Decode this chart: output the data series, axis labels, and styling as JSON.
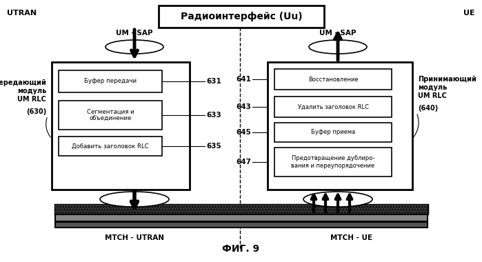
{
  "title": "ФИГ. 9",
  "radio_interface_label": "Радиоинтерфейс (Uu)",
  "utran_label": "UTRAN",
  "ue_label": "UE",
  "um_sap_left": "UM - SAP",
  "um_sap_right": "UM - SAP",
  "tx_module_line1": "Передающий",
  "tx_module_line2": "модуль",
  "tx_module_line3": "UM RLC",
  "tx_module_id": "(630)",
  "rx_module_line1": "Принимающий",
  "rx_module_line2": "модуль",
  "rx_module_line3": "UM RLC",
  "rx_module_id": "(640)",
  "mtch_utran": "MTCH - UTRAN",
  "mtch_ue": "MTCH - UE",
  "left_blocks": [
    {
      "label": "Буфер передачи",
      "id": "631"
    },
    {
      "label": "Сегментация и\nобъединение",
      "id": "633"
    },
    {
      "label": "Добавить заголовок RLC",
      "id": "635"
    }
  ],
  "right_blocks": [
    {
      "label": "Восстановление",
      "id": "641"
    },
    {
      "label": "Удалить заголовок RLC",
      "id": "643"
    },
    {
      "label": "Буфер приема",
      "id": "645"
    },
    {
      "label": "Предотвращение дублиро-\nвания и переупорядочение",
      "id": "647"
    }
  ],
  "bg_color": "#ffffff"
}
